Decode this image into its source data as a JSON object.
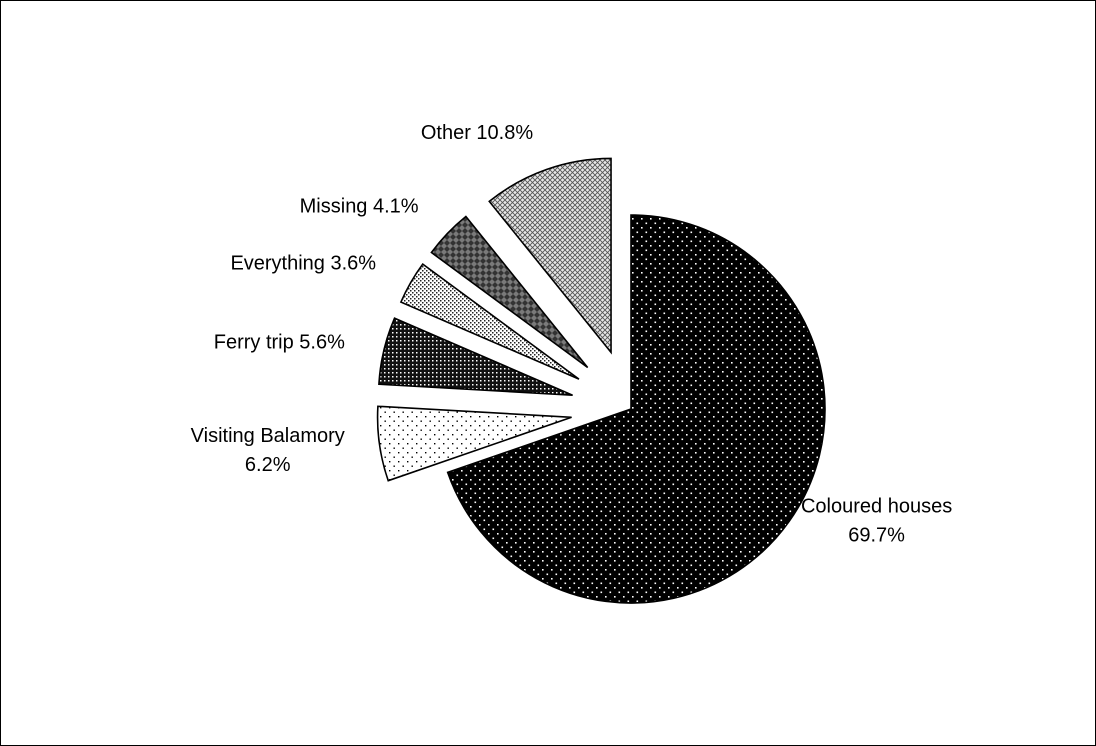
{
  "chart_data": {
    "type": "pie",
    "title": "",
    "start_angle_deg": 0,
    "direction": "clockwise",
    "legend": "none",
    "slices": [
      {
        "name": "Coloured houses",
        "value": 69.7,
        "label_lines": [
          "Coloured houses",
          "69.7%"
        ],
        "pattern": "black-dots",
        "exploded": false
      },
      {
        "name": "Visiting Balamory",
        "value": 6.2,
        "label_lines": [
          "Visiting Balamory",
          "6.2%"
        ],
        "pattern": "white-dots",
        "exploded": true
      },
      {
        "name": "Ferry trip",
        "value": 5.6,
        "label_lines": [
          "Ferry trip 5.6%"
        ],
        "pattern": "dark-check",
        "exploded": true
      },
      {
        "name": "Everything",
        "value": 3.6,
        "label_lines": [
          "Everything 3.6%"
        ],
        "pattern": "light-check",
        "exploded": true
      },
      {
        "name": "Missing",
        "value": 4.1,
        "label_lines": [
          "Missing 4.1%"
        ],
        "pattern": "grey-diamond",
        "exploded": true
      },
      {
        "name": "Other",
        "value": 10.8,
        "label_lines": [
          "Other 10.8%"
        ],
        "pattern": "light-grid",
        "exploded": true
      }
    ]
  }
}
